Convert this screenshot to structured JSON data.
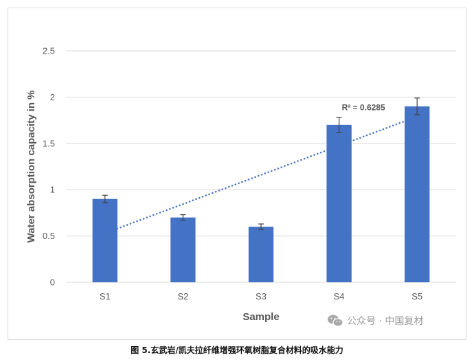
{
  "chart_data": {
    "type": "bar",
    "categories": [
      "S1",
      "S2",
      "S3",
      "S4",
      "S5"
    ],
    "values": [
      0.9,
      0.7,
      0.6,
      1.7,
      1.9
    ],
    "error": [
      0.04,
      0.03,
      0.03,
      0.08,
      0.09
    ],
    "xlabel": "Sample",
    "ylabel": "Water absorption capacity in %",
    "ylim": [
      0,
      2.5
    ],
    "yticks": [
      0,
      0.5,
      1,
      1.5,
      2,
      2.5
    ],
    "ytick_labels": [
      "0",
      "0.5",
      "1",
      "1.5",
      "2",
      "2.5"
    ],
    "grid": true,
    "legend": "none",
    "trendline": {
      "type": "linear",
      "from_category": "S1",
      "to_category": "S5",
      "start_value": 0.58,
      "end_value": 1.74,
      "label": "R² = 0.6285"
    },
    "colors": {
      "bar": "#4472c4",
      "trendline": "#4472c4",
      "grid": "#d9d9d9",
      "error_bar": "#404040"
    }
  },
  "watermark": {
    "icon": "wechat-icon",
    "text": "公众号 · 中国复材"
  },
  "caption": "图 5.玄武岩/凯夫拉纤维增强环氧树脂复合材料的吸水能力"
}
